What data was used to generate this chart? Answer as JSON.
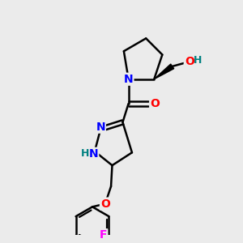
{
  "background_color": "#ebebeb",
  "bond_color": "#000000",
  "bond_width": 1.8,
  "atom_colors": {
    "N": "#0000ff",
    "O": "#ff0000",
    "F": "#ff00ff",
    "H_label": "#008080",
    "C": "#000000"
  },
  "font_size": 10,
  "fig_width": 3.0,
  "fig_height": 3.0
}
